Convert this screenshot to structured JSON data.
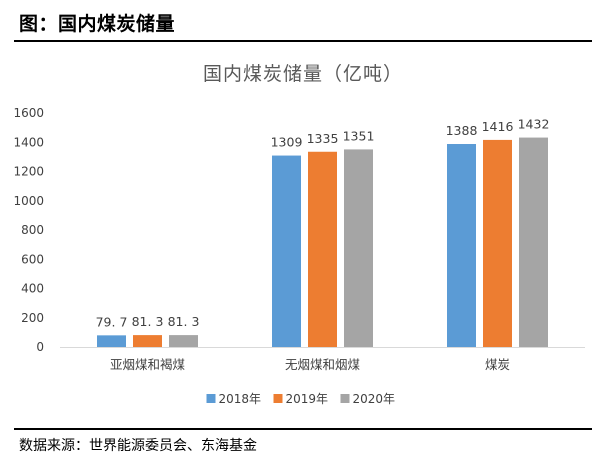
{
  "header": {
    "title": "图：国内煤炭储量",
    "source": "数据来源：世界能源委员会、东海基金"
  },
  "chart_data": {
    "type": "bar",
    "title": "国内煤炭储量（亿吨）",
    "categories": [
      "亚烟煤和褐煤",
      "无烟煤和烟煤",
      "煤炭"
    ],
    "series": [
      {
        "name": "2018年",
        "values": [
          79.7,
          1309,
          1388
        ],
        "labels": [
          "79. 7",
          "1309",
          "1388"
        ],
        "color": "#5B9BD5"
      },
      {
        "name": "2019年",
        "values": [
          81.3,
          1335,
          1416
        ],
        "labels": [
          "81. 3",
          "1335",
          "1416"
        ],
        "color": "#ED7D31"
      },
      {
        "name": "2020年",
        "values": [
          81.3,
          1351,
          1432
        ],
        "labels": [
          "81. 3",
          "1351",
          "1432"
        ],
        "color": "#A5A5A5"
      }
    ],
    "yticks": [
      "0",
      "200",
      "400",
      "600",
      "800",
      "1000",
      "1200",
      "1400",
      "1600"
    ],
    "ylim": [
      0,
      1600
    ],
    "grid": false,
    "legend_position": "bottom"
  }
}
